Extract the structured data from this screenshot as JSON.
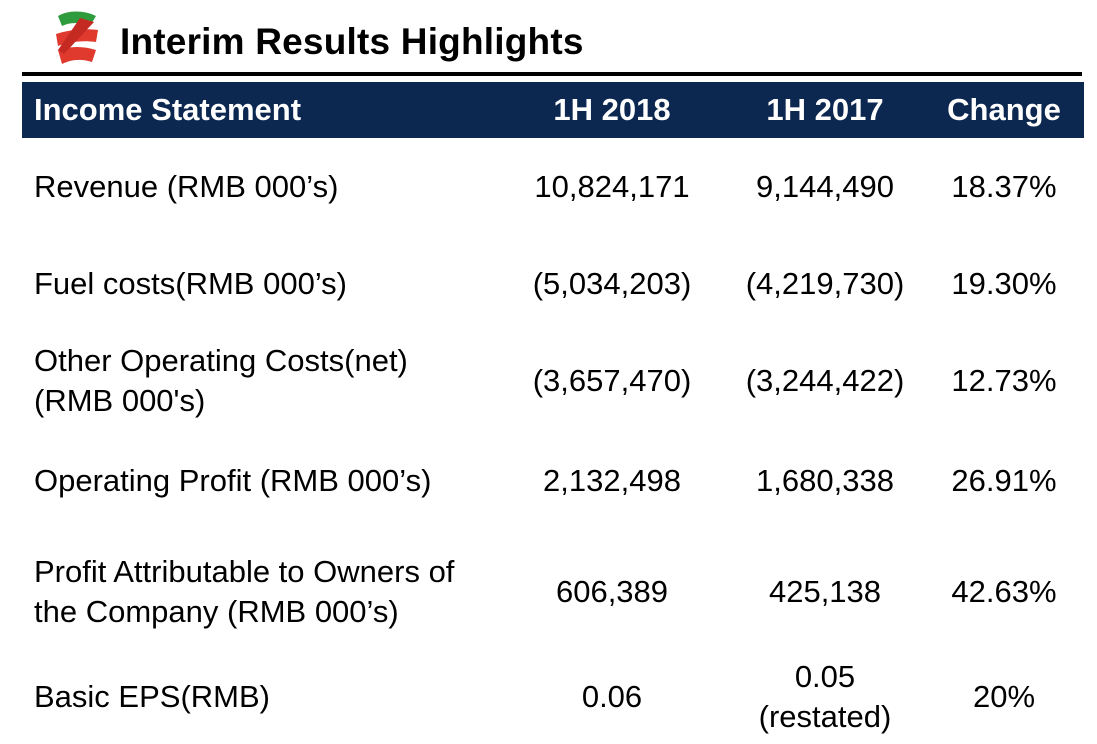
{
  "title": "Interim Results Highlights",
  "colors": {
    "header_bg": "#0c2750",
    "logo_red": "#e03a2f",
    "logo_green": "#2e9b3c"
  },
  "table": {
    "header": {
      "label": "Income Statement",
      "col1": "1H 2018",
      "col2": "1H 2017",
      "col3": "Change"
    },
    "rows": [
      {
        "label_line1": "Revenue (RMB 000’s)",
        "col1": "10,824,171",
        "col2": "9,144,490",
        "col3": "18.37%"
      },
      {
        "label_line1": "Fuel costs(RMB 000’s)",
        "col1": "(5,034,203)",
        "col2": "(4,219,730)",
        "col3": "19.30%"
      },
      {
        "label_line1": "Other Operating Costs(net)",
        "label_line2": "(RMB 000's)",
        "col1": "(3,657,470)",
        "col2": "(3,244,422)",
        "col3": "12.73%"
      },
      {
        "label_line1": "Operating Profit (RMB 000’s)",
        "col1": "2,132,498",
        "col2": "1,680,338",
        "col3": "26.91%"
      },
      {
        "label_line1": "Profit Attributable to Owners of",
        "label_line2": "the Company (RMB 000’s)",
        "col1": "606,389",
        "col2": "425,138",
        "col3": "42.63%"
      },
      {
        "label_line1": "Basic EPS(RMB)",
        "col1": "0.06",
        "col2_line1": "0.05",
        "col2_line2": "(restated)",
        "col3": "20%"
      }
    ]
  }
}
